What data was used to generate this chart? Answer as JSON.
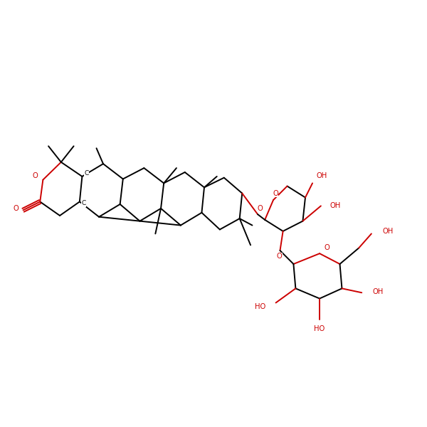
{
  "bg": "#ffffff",
  "bc": "#000000",
  "oc": "#cc0000",
  "figsize": [
    6.0,
    6.0
  ],
  "dpi": 100,
  "xlim": [
    0,
    10
  ],
  "ylim": [
    0,
    10
  ]
}
